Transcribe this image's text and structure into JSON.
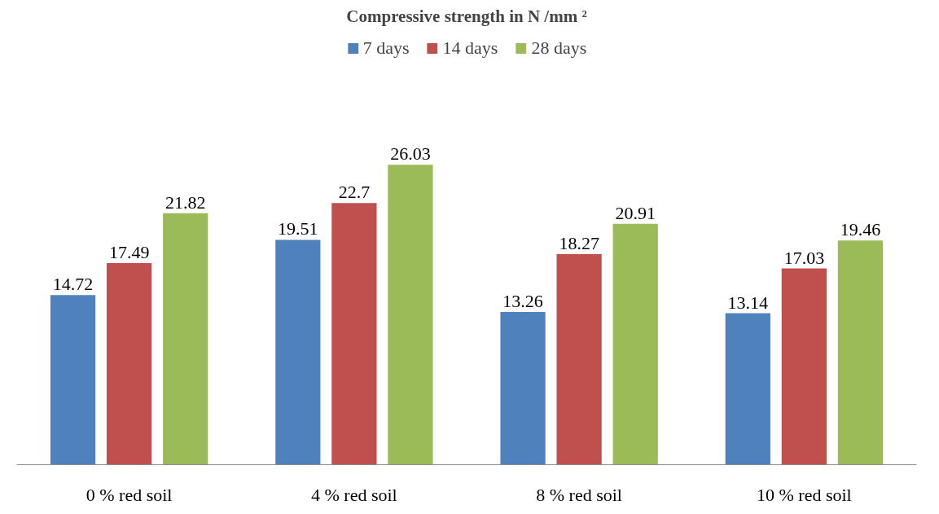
{
  "chart_data": {
    "type": "bar",
    "title": "Compressive strength in N /mm ²",
    "categories": [
      "0 % red soil",
      "4 % red soil",
      "8 % red soil",
      "10 % red soil"
    ],
    "series": [
      {
        "name": "7 days",
        "color": "#4f81bd",
        "values": [
          14.72,
          19.51,
          13.26,
          13.14
        ]
      },
      {
        "name": "14 days",
        "color": "#c0504d",
        "values": [
          17.49,
          22.7,
          18.27,
          17.03
        ]
      },
      {
        "name": "28 days",
        "color": "#9bbb59",
        "values": [
          21.82,
          26.03,
          20.91,
          19.46
        ]
      }
    ],
    "data_labels": true,
    "legend": "top"
  }
}
